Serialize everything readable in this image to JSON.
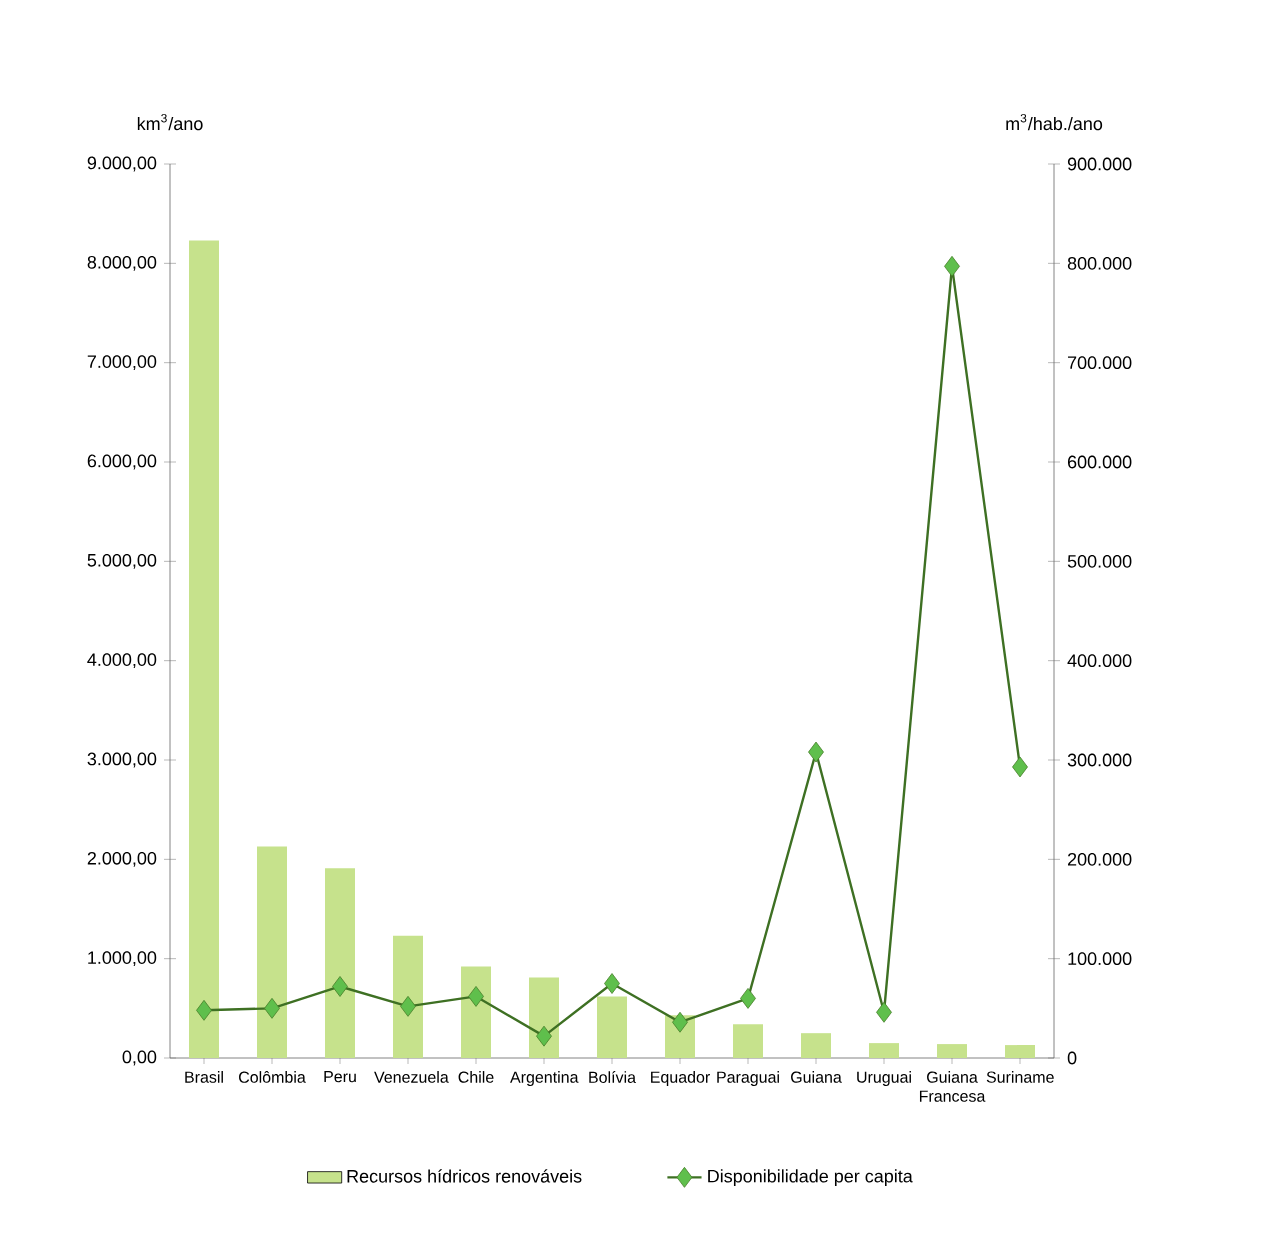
{
  "chart_data": {
    "type": "bar",
    "categories": [
      "Brasil",
      "Colômbia",
      "Peru",
      "Venezuela",
      "Chile",
      "Argentina",
      "Bolívia",
      "Equador",
      "Paraguai",
      "Guiana",
      "Uruguai",
      "Guiana Francesa",
      "Suriname"
    ],
    "series": [
      {
        "name": "Recursos hídricos renováveis",
        "color": "#c6e28c",
        "values": [
          8230,
          2130,
          1910,
          1230,
          920,
          810,
          620,
          430,
          340,
          250,
          150,
          140,
          130
        ]
      },
      {
        "name": "Disponibilidade per capita",
        "type": "line",
        "axis": "y2",
        "color": "#4e8c2c",
        "marker": "diamond",
        "values": [
          48000,
          50000,
          72000,
          52000,
          62000,
          22000,
          75000,
          36000,
          60000,
          308000,
          46000,
          797000,
          293000
        ]
      }
    ],
    "ylabel": "km$^{3}$/ano",
    "y2label": "m$^{3}$/hab./ano",
    "ylim": [
      0,
      9000
    ],
    "yticks": [
      {
        "value": 0,
        "label": "0,00"
      },
      {
        "value": 1000,
        "label": "1.000,00"
      },
      {
        "value": 2000,
        "label": "2.000,00"
      },
      {
        "value": 3000,
        "label": "3.000,00"
      },
      {
        "value": 4000,
        "label": "4.000,00"
      },
      {
        "value": 5000,
        "label": "5.000,00"
      },
      {
        "value": 6000,
        "label": "6.000,00"
      },
      {
        "value": 7000,
        "label": "7.000,00"
      },
      {
        "value": 8000,
        "label": "8.000,00"
      },
      {
        "value": 9000,
        "label": "9.000,00"
      }
    ],
    "y2lim": [
      0,
      900000
    ],
    "y2ticks": [
      0,
      {
        "value": 100000,
        "label": "100.000"
      },
      {
        "value": 200000,
        "label": "200.000"
      },
      {
        "value": 300000,
        "label": "300.000"
      },
      {
        "value": 400000,
        "label": "400.000"
      },
      {
        "value": 500000,
        "label": "500.000"
      },
      {
        "value": 600000,
        "label": "600.000"
      },
      {
        "value": 700000,
        "label": "700.000"
      },
      {
        "value": 800000,
        "label": "800.000"
      },
      {
        "value": 900000,
        "label": "900.000"
      }
    ],
    "legend": "bottom"
  }
}
